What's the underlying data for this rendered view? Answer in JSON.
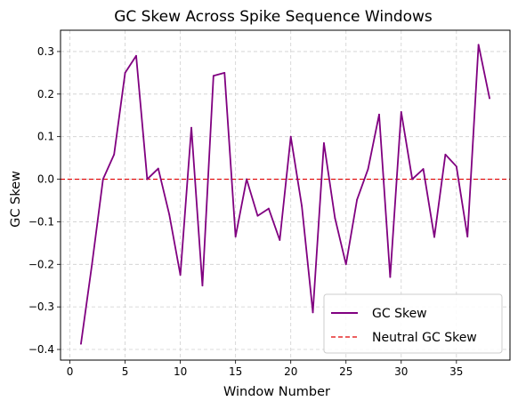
{
  "chart_data": {
    "type": "line",
    "title": "GC Skew Across Spike Sequence Windows",
    "xlabel": "Window Number",
    "ylabel": "GC Skew",
    "xlim": [
      -0.85,
      39.85
    ],
    "ylim": [
      -0.425,
      0.35
    ],
    "xticks": [
      0,
      5,
      10,
      15,
      20,
      25,
      30,
      35
    ],
    "yticks": [
      -0.4,
      -0.3,
      -0.2,
      -0.1,
      0.0,
      0.1,
      0.2,
      0.3
    ],
    "yticklabels": [
      "−0.4",
      "−0.3",
      "−0.2",
      "−0.1",
      "0.0",
      "0.1",
      "0.2",
      "0.3"
    ],
    "grid": true,
    "legend_position": "lower-right",
    "x": [
      1,
      2,
      3,
      4,
      5,
      6,
      7,
      8,
      9,
      10,
      11,
      12,
      13,
      14,
      15,
      16,
      17,
      18,
      19,
      20,
      21,
      22,
      23,
      24,
      25,
      26,
      27,
      28,
      29,
      30,
      31,
      32,
      33,
      34,
      35,
      36,
      37,
      38
    ],
    "series": [
      {
        "name": "GC Skew",
        "color": "#800080",
        "values": [
          -0.387,
          -0.2,
          0.0,
          0.058,
          0.25,
          0.29,
          0.0,
          0.025,
          -0.083,
          -0.225,
          0.121,
          -0.25,
          0.243,
          0.25,
          -0.135,
          0.0,
          -0.086,
          -0.069,
          -0.143,
          0.1,
          -0.063,
          -0.313,
          0.085,
          -0.091,
          -0.2,
          -0.048,
          0.024,
          0.152,
          -0.23,
          0.158,
          0.0,
          0.024,
          -0.136,
          0.058,
          0.03,
          -0.135,
          0.316,
          0.19
        ]
      }
    ],
    "reference_line": {
      "name": "Neutral GC Skew",
      "y": 0.0,
      "color": "#e00000",
      "style": "dashed"
    }
  }
}
